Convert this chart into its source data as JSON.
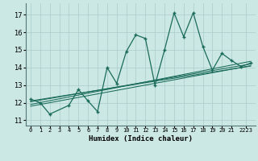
{
  "xlabel": "Humidex (Indice chaleur)",
  "bg_color": "#cce8e4",
  "grid_color": "#aacccc",
  "line_color": "#1a6b5a",
  "xlim": [
    -0.5,
    23.5
  ],
  "ylim": [
    10.7,
    17.65
  ],
  "yticks": [
    11,
    12,
    13,
    14,
    15,
    16,
    17
  ],
  "main_series_x": [
    0,
    1,
    2,
    4,
    5,
    6,
    7,
    8,
    9,
    10,
    11,
    12,
    13,
    14,
    15,
    16,
    17,
    18,
    19,
    20,
    21,
    22,
    23
  ],
  "main_series_y": [
    12.2,
    12.0,
    11.35,
    11.85,
    12.75,
    12.1,
    11.5,
    14.0,
    13.1,
    14.9,
    15.85,
    15.65,
    13.0,
    15.0,
    17.1,
    15.75,
    17.1,
    15.2,
    13.85,
    14.8,
    14.4,
    14.05,
    14.25
  ],
  "trend_lines": [
    [
      0,
      12.05,
      23,
      14.2
    ],
    [
      0,
      11.9,
      23,
      14.35
    ],
    [
      0,
      11.8,
      23,
      14.1
    ],
    [
      0,
      12.1,
      23,
      14.08
    ]
  ]
}
